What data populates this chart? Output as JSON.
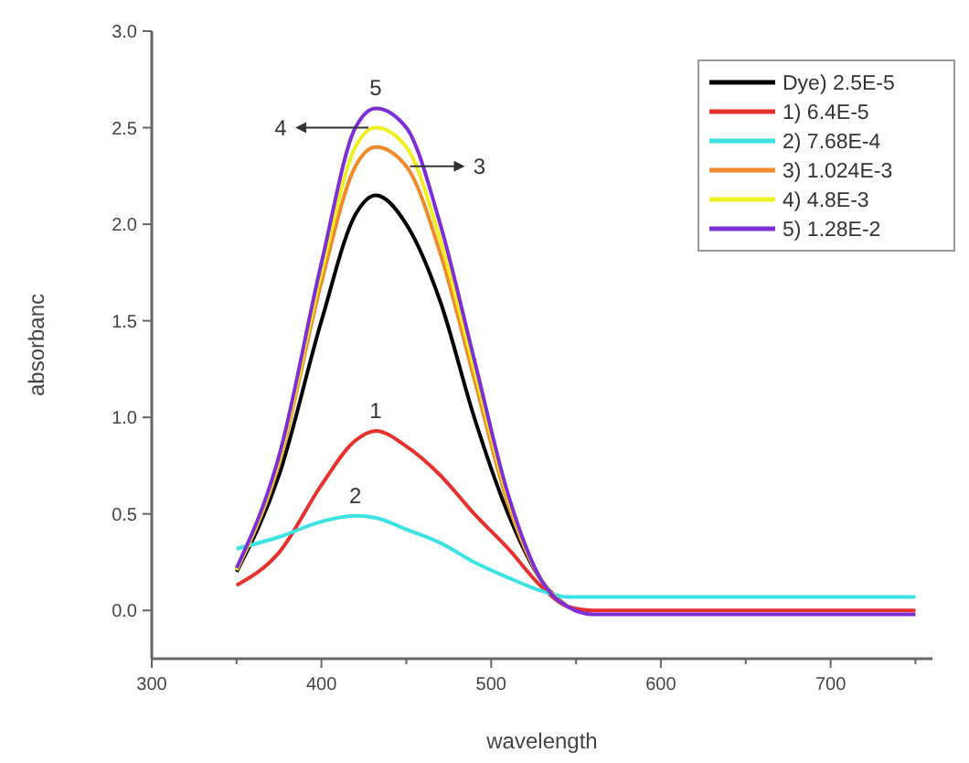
{
  "chart_data": {
    "type": "line",
    "xlabel": "wavelength",
    "ylabel": "absorbanc",
    "xlim": [
      300,
      760
    ],
    "xticks": [
      300,
      {
        "value": 350,
        "label": null
      },
      400,
      {
        "value": 450,
        "label": null
      },
      500,
      {
        "value": 550,
        "label": null
      },
      600,
      {
        "value": 650,
        "label": null
      },
      700,
      {
        "value": 750,
        "label": null
      }
    ],
    "ylim": [
      -0.25,
      3.0
    ],
    "yticks": [
      {
        "value": 0,
        "label": "0.0"
      },
      0.5,
      {
        "value": 1,
        "label": "1.0"
      },
      1.5,
      {
        "value": 2,
        "label": "2.0"
      },
      2.5,
      {
        "value": 3,
        "label": "3.0"
      }
    ],
    "x": [
      350,
      375,
      400,
      420,
      432,
      450,
      470,
      490,
      510,
      530,
      545,
      560,
      600,
      650,
      700,
      750
    ],
    "series": [
      {
        "name": "Dye) 2.5E-5",
        "color": "#000000",
        "values": [
          0.2,
          0.7,
          1.5,
          2.05,
          2.15,
          2.0,
          1.6,
          1.0,
          0.5,
          0.15,
          0.02,
          null,
          null,
          null,
          null,
          null
        ]
      },
      {
        "name": "1) 6.4E-5",
        "color": "#e8312f",
        "values": [
          0.13,
          0.3,
          0.65,
          0.88,
          0.93,
          0.85,
          0.7,
          0.5,
          0.32,
          0.12,
          0.02,
          0.0,
          0.0,
          0.0,
          0.0,
          0.0
        ]
      },
      {
        "name": "2) 7.68E-4",
        "color": "#3de3e3",
        "values": [
          0.32,
          0.38,
          0.46,
          0.49,
          0.48,
          0.42,
          0.35,
          0.25,
          0.17,
          0.1,
          0.07,
          0.07,
          0.07,
          0.07,
          0.07,
          0.07
        ]
      },
      {
        "name": "3) 1.024E-3",
        "color": "#f08a2a",
        "values": [
          0.21,
          0.76,
          1.7,
          2.3,
          2.4,
          2.3,
          1.85,
          1.2,
          0.55,
          0.15,
          0.02,
          null,
          null,
          null,
          null,
          null
        ]
      },
      {
        "name": "4) 4.8E-3",
        "color": "#f0f020",
        "values": [
          0.21,
          0.78,
          1.75,
          2.4,
          2.5,
          2.4,
          1.92,
          1.25,
          0.58,
          0.15,
          0.02,
          null,
          null,
          null,
          null,
          null
        ]
      },
      {
        "name": "5) 1.28E-2",
        "color": "#7d2ed6",
        "values": [
          0.22,
          0.8,
          1.8,
          2.5,
          2.6,
          2.5,
          2.0,
          1.3,
          0.6,
          0.15,
          0.02,
          -0.02,
          -0.02,
          -0.02,
          -0.02,
          -0.02
        ]
      }
    ],
    "annotations": [
      {
        "text": "5",
        "x": 432,
        "y": 2.6
      },
      {
        "text": "4",
        "x": 432,
        "y": 2.5
      },
      {
        "text": "3",
        "x": 450,
        "y": 2.3
      },
      {
        "text": "1",
        "x": 432,
        "y": 0.93
      },
      {
        "text": "2",
        "x": 420,
        "y": 0.49
      }
    ],
    "legend": "top right",
    "marker": "none",
    "line_style": "solid",
    "grid": false
  }
}
